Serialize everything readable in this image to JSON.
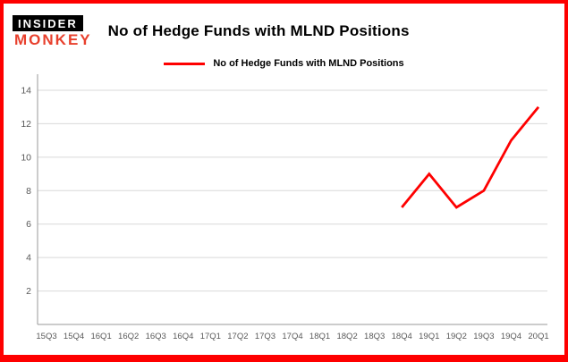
{
  "logo": {
    "line1": "INSIDER",
    "line2": "MONKEY"
  },
  "header": {
    "title": "No of Hedge Funds with MLND Positions"
  },
  "chart_data": {
    "type": "line",
    "title": "No of Hedge Funds with MLND Positions",
    "categories": [
      "15Q3",
      "15Q4",
      "16Q1",
      "16Q2",
      "16Q3",
      "16Q4",
      "17Q1",
      "17Q2",
      "17Q3",
      "17Q4",
      "18Q1",
      "18Q2",
      "18Q3",
      "18Q4",
      "19Q1",
      "19Q2",
      "19Q3",
      "19Q4",
      "20Q1"
    ],
    "series": [
      {
        "name": "No of Hedge Funds with MLND Positions",
        "color": "#fe0000",
        "values": [
          null,
          null,
          null,
          null,
          null,
          null,
          null,
          null,
          null,
          null,
          null,
          null,
          null,
          7,
          9,
          7,
          8,
          11,
          13
        ]
      }
    ],
    "xlabel": "",
    "ylabel": "",
    "ylim": [
      0,
      14
    ],
    "yticks": [
      2,
      4,
      6,
      8,
      10,
      12,
      14
    ],
    "grid": true,
    "legend_position": "top-center-inside",
    "colors": {
      "line": "#fe0000",
      "grid": "#d9d9d9",
      "axis": "#9a9a9a",
      "tick_text": "#595959",
      "border": "#fe0000"
    }
  }
}
